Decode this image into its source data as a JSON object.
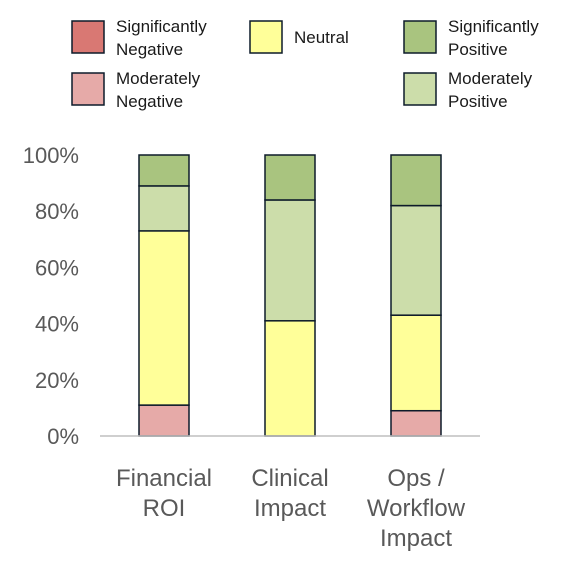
{
  "chart_data": {
    "type": "bar",
    "stacked": true,
    "normalized": true,
    "title": "",
    "xlabel": "",
    "ylabel": "",
    "ylim": [
      0,
      100
    ],
    "y_ticks": [
      "0%",
      "20%",
      "40%",
      "60%",
      "80%",
      "100%"
    ],
    "grid": false,
    "legend_position": "top",
    "categories": [
      [
        "Financial",
        "ROI"
      ],
      [
        "Clinical",
        "Impact"
      ],
      [
        "Ops /",
        "Workflow",
        "Impact"
      ]
    ],
    "series": [
      {
        "name": "Significantly Negative",
        "legend_lines": [
          "Significantly",
          "Negative"
        ],
        "color": "#d97873",
        "values": [
          0,
          0,
          0
        ]
      },
      {
        "name": "Moderately Negative",
        "legend_lines": [
          "Moderately",
          "Negative"
        ],
        "color": "#e6aaa8",
        "values": [
          11,
          0,
          9
        ]
      },
      {
        "name": "Neutral",
        "legend_lines": [
          "Neutral"
        ],
        "color": "#ffff99",
        "values": [
          62,
          41,
          34
        ]
      },
      {
        "name": "Moderately Positive",
        "legend_lines": [
          "Moderately",
          "Positive"
        ],
        "color": "#ccddaa",
        "values": [
          16,
          43,
          39
        ]
      },
      {
        "name": "Significantly Positive",
        "legend_lines": [
          "Significantly",
          "Positive"
        ],
        "color": "#a9c47f",
        "values": [
          11,
          16,
          18
        ]
      }
    ],
    "bar_border_color": "#0d1b2a",
    "axis_color": "#bfbfbf"
  }
}
